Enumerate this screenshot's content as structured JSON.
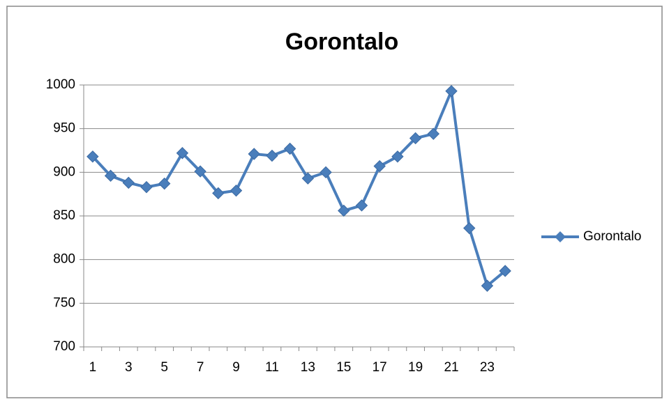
{
  "chart_data": {
    "type": "line",
    "title": "Gorontalo",
    "categories": [
      1,
      null,
      3,
      null,
      5,
      null,
      7,
      null,
      9,
      null,
      11,
      null,
      13,
      null,
      15,
      null,
      17,
      null,
      19,
      null,
      21,
      null,
      23,
      null
    ],
    "series": [
      {
        "name": "Gorontalo",
        "color": "#4a7ebb",
        "values": [
          918,
          896,
          888,
          883,
          887,
          922,
          901,
          876,
          879,
          921,
          919,
          927,
          893,
          900,
          856,
          862,
          907,
          918,
          939,
          944,
          993,
          836,
          770,
          787
        ]
      }
    ],
    "ylim": [
      700,
      1000
    ],
    "yticks": [
      700,
      750,
      800,
      850,
      900,
      950,
      1000
    ],
    "grid": true,
    "legend": "right"
  }
}
